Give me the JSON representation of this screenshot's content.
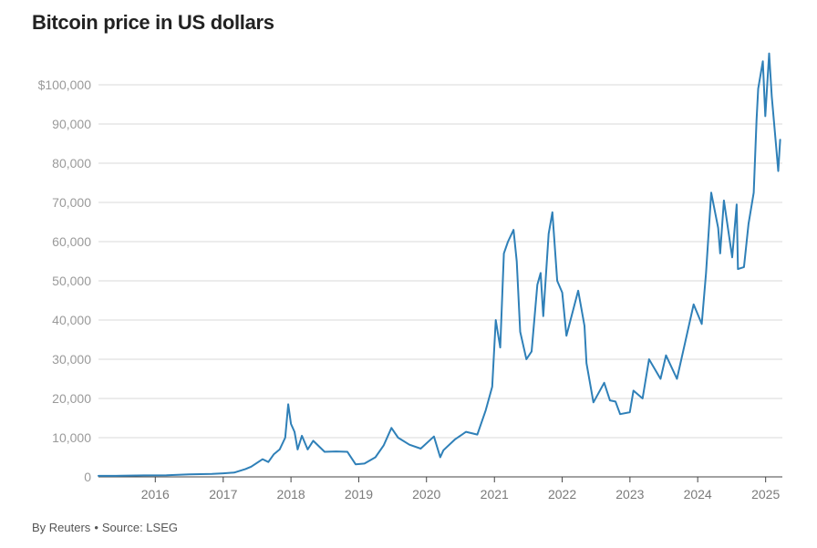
{
  "title": "Bitcoin price in US dollars",
  "footer": {
    "byline": "By Reuters",
    "separator": "•",
    "source": "Source: LSEG"
  },
  "chart_data": {
    "type": "line",
    "title": "Bitcoin price in US dollars",
    "xlabel": "",
    "ylabel": "",
    "ylim": [
      0,
      100000
    ],
    "xlim": [
      "2015-03",
      "2025-04"
    ],
    "yticks": [
      0,
      10000,
      20000,
      30000,
      40000,
      50000,
      60000,
      70000,
      80000,
      90000,
      100000
    ],
    "ytick_labels": [
      "0",
      "10,000",
      "20,000",
      "30,000",
      "40,000",
      "50,000",
      "60,000",
      "70,000",
      "80,000",
      "90,000",
      "$100,000"
    ],
    "xticks": [
      "2016",
      "2017",
      "2018",
      "2019",
      "2020",
      "2021",
      "2022",
      "2023",
      "2024",
      "2025"
    ],
    "grid": "horizontal",
    "line_color": "#2f80b8",
    "series": [
      {
        "x": [
          "2015-03",
          "2015-07",
          "2015-11",
          "2016-03",
          "2016-07",
          "2016-11",
          "2017-01",
          "2017-03",
          "2017-05",
          "2017-06",
          "2017-08",
          "2017-09",
          "2017-10",
          "2017-11",
          "2017-12-01",
          "2017-12-17",
          "2018-01-01",
          "2018-01-20",
          "2018-02-06",
          "2018-03-01",
          "2018-04-01",
          "2018-05-01",
          "2018-07-01",
          "2018-09-01",
          "2018-11-01",
          "2018-12-15",
          "2019-02-01",
          "2019-04-01",
          "2019-05-15",
          "2019-06-26",
          "2019-08-01",
          "2019-10-01",
          "2019-12-01",
          "2020-02-10",
          "2020-03-15",
          "2020-04-01",
          "2020-06-01",
          "2020-08-01",
          "2020-10-01",
          "2020-11-15",
          "2020-12-20",
          "2021-01-08",
          "2021-02-01",
          "2021-02-21",
          "2021-03-15",
          "2021-04-14",
          "2021-05-01",
          "2021-05-20",
          "2021-06-22",
          "2021-07-20",
          "2021-08-20",
          "2021-09-07",
          "2021-09-21",
          "2021-10-20",
          "2021-11-09",
          "2021-12-05",
          "2022-01-01",
          "2022-01-24",
          "2022-03-28",
          "2022-05-01",
          "2022-05-12",
          "2022-06-18",
          "2022-08-15",
          "2022-09-15",
          "2022-10-15",
          "2022-11-09",
          "2022-12-31",
          "2023-01-20",
          "2023-03-10",
          "2023-04-14",
          "2023-06-15",
          "2023-07-14",
          "2023-09-11",
          "2023-10-24",
          "2023-12-10",
          "2024-01-23",
          "2024-02-15",
          "2024-03-14",
          "2024-04-20",
          "2024-05-01",
          "2024-05-21",
          "2024-07-05",
          "2024-07-29",
          "2024-08-05",
          "2024-09-06",
          "2024-10-01",
          "2024-10-29",
          "2024-11-13",
          "2024-11-22",
          "2024-12-17",
          "2024-12-30",
          "2025-01-20",
          "2025-02-03",
          "2025-02-27",
          "2025-03-10",
          "2025-03-20"
        ],
        "y": [
          250,
          280,
          380,
          420,
          650,
          740,
          900,
          1100,
          2000,
          2600,
          4500,
          3800,
          5800,
          7000,
          10000,
          18500,
          13500,
          11500,
          7000,
          10500,
          7000,
          9200,
          6400,
          6500,
          6400,
          3200,
          3400,
          5000,
          8000,
          12500,
          10000,
          8200,
          7200,
          10300,
          5000,
          6800,
          9500,
          11500,
          10800,
          17000,
          23000,
          40000,
          33000,
          57000,
          60000,
          63000,
          55000,
          37000,
          30000,
          32000,
          49000,
          52000,
          41000,
          62000,
          67500,
          50000,
          47000,
          36000,
          47500,
          38500,
          29000,
          19000,
          24000,
          19500,
          19200,
          16000,
          16500,
          22000,
          20000,
          30000,
          25000,
          31000,
          25000,
          34000,
          44000,
          39000,
          52000,
          72500,
          63500,
          57000,
          70500,
          56000,
          69500,
          53000,
          53500,
          64500,
          72500,
          91000,
          99000,
          106000,
          92000,
          108000,
          97000,
          84000,
          78000,
          86000
        ]
      }
    ]
  }
}
